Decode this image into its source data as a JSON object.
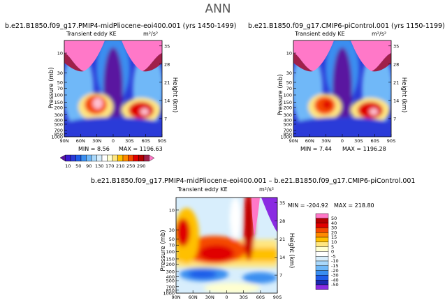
{
  "page_title": "ANN",
  "chart_data": [
    {
      "type": "heatmap",
      "title": "b.e21.B1850.f09_g17.PMIP4-midPliocene-eoi400.001 (yrs 1450-1499)",
      "subtitle_left": "Transient eddy KE",
      "units": "m²/s²",
      "xlabel": "",
      "ylabel": "Pressure (mb)",
      "ylabel_right": "Height (km)",
      "x_ticks": [
        "90N",
        "60N",
        "30N",
        "0",
        "30S",
        "60S",
        "90S"
      ],
      "y_ticks": [
        "10",
        "30",
        "50",
        "70",
        "100",
        "150",
        "200",
        "300",
        "400",
        "500",
        "700",
        "850",
        "1000"
      ],
      "y_ticks_right": [
        "35",
        "28",
        "21",
        "14",
        "7"
      ],
      "min_label": "MIN = ",
      "min_value": "8.56",
      "max_label": "MAX = ",
      "max_value": "1196.63"
    },
    {
      "type": "heatmap",
      "title": "b.e21.B1850.f09_g17.CMIP6-piControl.001 (yrs 1150-1199)",
      "subtitle_left": "Transient eddy KE",
      "units": "m²/s²",
      "xlabel": "",
      "ylabel": "Pressure (mb)",
      "ylabel_right": "Height (km)",
      "x_ticks": [
        "90N",
        "60N",
        "30N",
        "0",
        "30S",
        "60S",
        "90S"
      ],
      "y_ticks": [
        "10",
        "30",
        "50",
        "70",
        "100",
        "150",
        "200",
        "300",
        "400",
        "500",
        "700",
        "850",
        "1000"
      ],
      "y_ticks_right": [
        "35",
        "28",
        "21",
        "14",
        "7"
      ],
      "min_label": "MIN = ",
      "min_value": "7.44",
      "max_label": "MAX = ",
      "max_value": "1196.28"
    },
    {
      "type": "heatmap",
      "title": "b.e21.B1850.f09_g17.PMIP4-midPliocene-eoi400.001 – b.e21.B1850.f09_g17.CMIP6-piControl.001",
      "subtitle_left": "Transient eddy KE",
      "units": "m²/s²",
      "xlabel": "",
      "ylabel": "Pressure (mb)",
      "ylabel_right": "Height (km)",
      "x_ticks": [
        "90N",
        "60N",
        "30N",
        "0",
        "30S",
        "60S",
        "90S"
      ],
      "y_ticks": [
        "10",
        "30",
        "50",
        "70",
        "100",
        "150",
        "200",
        "300",
        "400",
        "500",
        "700",
        "850",
        "1000"
      ],
      "y_ticks_right": [
        "35",
        "28",
        "21",
        "14",
        "7"
      ],
      "min_label": "MIN = ",
      "min_value": "-204.92",
      "max_label": "MAX = ",
      "max_value": "218.80"
    }
  ],
  "colorbar_top": {
    "labels": [
      "10",
      "50",
      "90",
      "130",
      "170",
      "210",
      "250",
      "290"
    ],
    "colors": [
      "#5a14a0",
      "#3a1ad0",
      "#2a3ad8",
      "#1f5ce8",
      "#3a8ef0",
      "#6fb8f8",
      "#a9d8fb",
      "#d8eefc",
      "#ffffff",
      "#ffffd0",
      "#ffe680",
      "#ffc000",
      "#ff8a00",
      "#f54a00",
      "#e00000",
      "#b40000",
      "#a0204a",
      "#ff78c8"
    ]
  },
  "colorbar_diff": {
    "labels": [
      "50",
      "40",
      "30",
      "20",
      "15",
      "10",
      "5",
      "0",
      "-5",
      "-10",
      "-15",
      "-20",
      "-30",
      "-40",
      "-50"
    ],
    "colors": [
      "#ff78c8",
      "#b40000",
      "#e00000",
      "#f54a00",
      "#ff8a00",
      "#ffc000",
      "#ffe680",
      "#ffffd0",
      "#ffffff",
      "#d8eefc",
      "#a9d8fb",
      "#6fb8f8",
      "#3a8ef0",
      "#1f5ce8",
      "#1a2ab0",
      "#8a2be2"
    ]
  }
}
